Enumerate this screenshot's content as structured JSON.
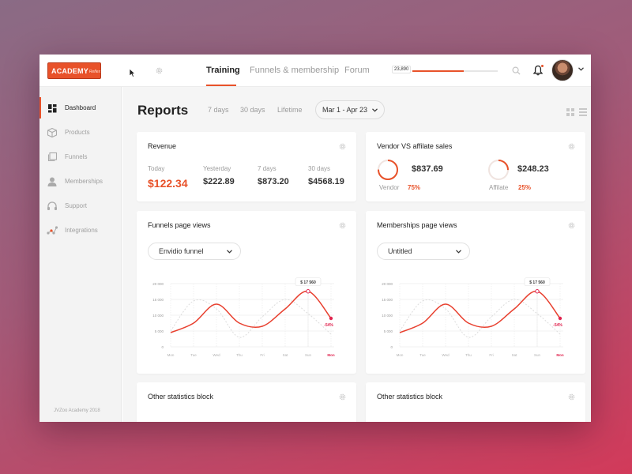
{
  "logo": {
    "main": "ACADEMY",
    "sub": "Reflex"
  },
  "nav": {
    "tabs": [
      {
        "label": "Training",
        "active": true
      },
      {
        "label": "Funnels & membership",
        "active": false
      },
      {
        "label": "Forum",
        "active": false
      }
    ]
  },
  "progress": {
    "value_label": "23,890",
    "fill_fraction": 0.6
  },
  "sidebar": {
    "items": [
      {
        "label": "Dashboard",
        "icon": "dashboard-icon",
        "active": true
      },
      {
        "label": "Products",
        "icon": "box-icon",
        "active": false
      },
      {
        "label": "Funnels",
        "icon": "layers-icon",
        "active": false
      },
      {
        "label": "Memberships",
        "icon": "user-icon",
        "active": false
      },
      {
        "label": "Support",
        "icon": "headset-icon",
        "active": false
      },
      {
        "label": "Integrations",
        "icon": "nodes-icon",
        "active": false
      }
    ],
    "footer": "JVZoo Academy 2018"
  },
  "page": {
    "title": "Reports",
    "ranges": [
      "7 days",
      "30 days",
      "Lifetime"
    ],
    "date_range": "Mar 1 - Apr 23"
  },
  "revenue": {
    "title": "Revenue",
    "stats": [
      {
        "label": "Today",
        "value": "$122.34"
      },
      {
        "label": "Yesterday",
        "value": "$222.89"
      },
      {
        "label": "7 days",
        "value": "$873.20"
      },
      {
        "label": "30 days",
        "value": "$4568.19"
      }
    ]
  },
  "vendor": {
    "title": "Vendor VS affilate sales",
    "vendor": {
      "value": "$837.69",
      "label": "Vendor",
      "pct": "75%",
      "fraction": 0.75
    },
    "affiliate": {
      "value": "$248.23",
      "label": "Affilate",
      "pct": "25%",
      "fraction": 0.25
    }
  },
  "funnels_chart": {
    "title": "Funnels page views",
    "dropdown": "Envidio funnel"
  },
  "memberships_chart": {
    "title": "Memberships page views",
    "dropdown": "Untitled"
  },
  "other1": {
    "title": "Other statistics block"
  },
  "other2": {
    "title": "Other statistics block"
  },
  "colors": {
    "accent": "#e8522a",
    "line": "#e8402f",
    "highlight": "#e0244f"
  },
  "chart_data": [
    {
      "type": "line",
      "title": "Funnels page views",
      "categories": [
        "Mon",
        "Tue",
        "Wed",
        "Thu",
        "Fri",
        "Sat",
        "Sun",
        "Mon"
      ],
      "yticks": [
        "20 000",
        "15 000",
        "10 000",
        "5 000",
        "0"
      ],
      "ylim": [
        0,
        20000
      ],
      "series": [
        {
          "values": [
            4500,
            7500,
            13500,
            7500,
            6500,
            12000,
            17560,
            9000
          ]
        },
        {
          "values": [
            5000,
            14500,
            12000,
            3000,
            9500,
            15000,
            10500,
            4000
          ]
        }
      ],
      "annotations": [
        {
          "label": "$ 17 560"
        },
        {
          "label": "-54%"
        }
      ]
    },
    {
      "type": "line",
      "title": "Memberships page views",
      "categories": [
        "Mon",
        "Tue",
        "Wed",
        "Thu",
        "Fri",
        "Sat",
        "Sun",
        "Mon"
      ],
      "yticks": [
        "20 000",
        "15 000",
        "10 000",
        "5 000",
        "0"
      ],
      "ylim": [
        0,
        20000
      ],
      "series": [
        {
          "values": [
            4500,
            7500,
            13500,
            7500,
            6500,
            12000,
            17560,
            9000
          ]
        },
        {
          "values": [
            5000,
            14500,
            12000,
            3000,
            9500,
            15000,
            10500,
            4000
          ]
        }
      ],
      "annotations": [
        {
          "label": "$ 17 560"
        },
        {
          "label": "-54%"
        }
      ]
    }
  ]
}
